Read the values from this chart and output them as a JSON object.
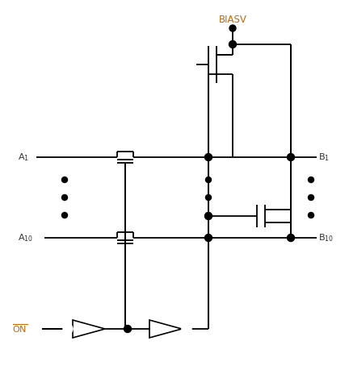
{
  "bg_color": "#ffffff",
  "line_color": "#000000",
  "figsize": [
    4.32,
    4.59
  ],
  "dpi": 100,
  "biasv_label": "BIASV",
  "on_label": "ON",
  "a1_label": "A",
  "a10_label": "A",
  "b1_label": "B",
  "b10_label": "B",
  "label_color": "#555555",
  "biasv_color": "#cc6600",
  "on_color": "#cc6600"
}
